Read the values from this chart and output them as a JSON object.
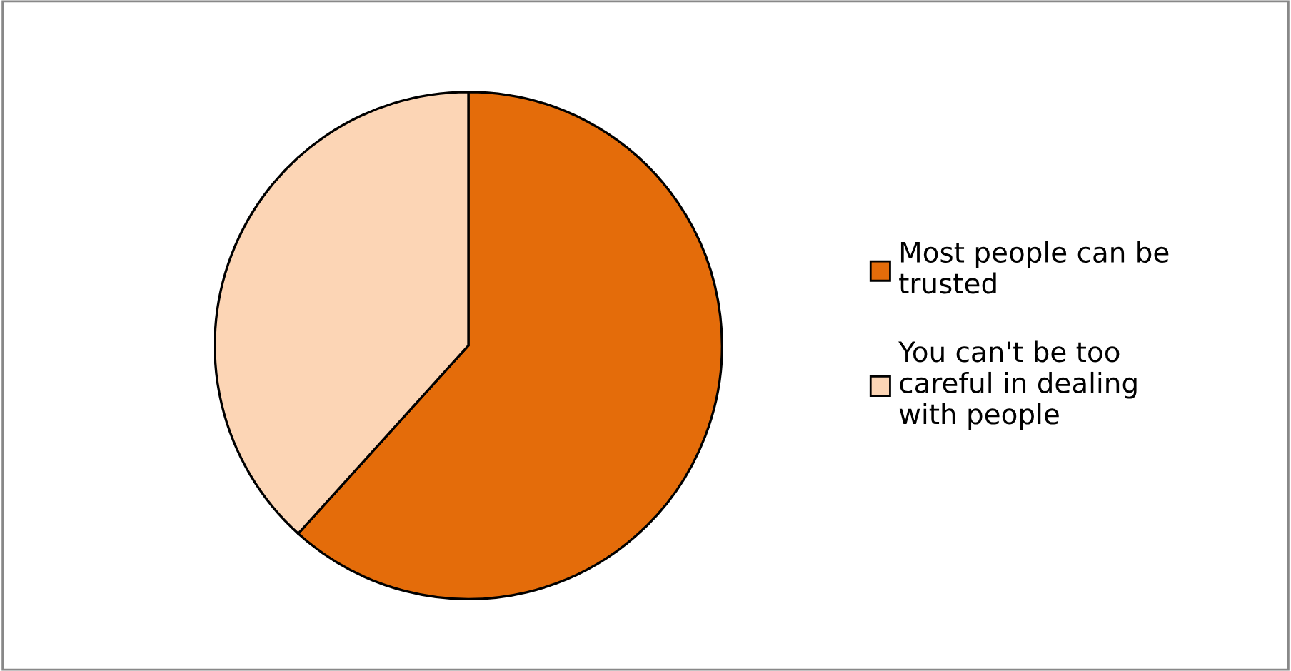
{
  "chart_data": {
    "type": "pie",
    "categories": [
      "Most people can be trusted",
      "You can't be too careful in dealing with people"
    ],
    "values": [
      61.7,
      38.3
    ],
    "colors": [
      "#e46c0a",
      "#fcd5b5"
    ],
    "legend": "right"
  }
}
